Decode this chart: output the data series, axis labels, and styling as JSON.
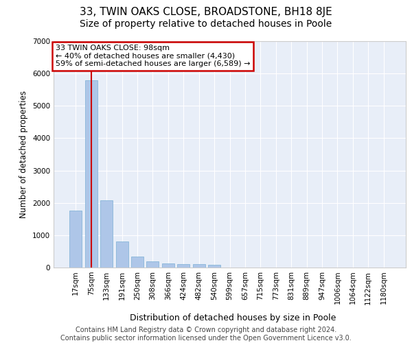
{
  "title_line1": "33, TWIN OAKS CLOSE, BROADSTONE, BH18 8JE",
  "title_line2": "Size of property relative to detached houses in Poole",
  "xlabel": "Distribution of detached houses by size in Poole",
  "ylabel": "Number of detached properties",
  "categories": [
    "17sqm",
    "75sqm",
    "133sqm",
    "191sqm",
    "250sqm",
    "308sqm",
    "366sqm",
    "424sqm",
    "482sqm",
    "540sqm",
    "599sqm",
    "657sqm",
    "715sqm",
    "773sqm",
    "831sqm",
    "889sqm",
    "947sqm",
    "1006sqm",
    "1064sqm",
    "1122sqm",
    "1180sqm"
  ],
  "values": [
    1770,
    5800,
    2080,
    800,
    340,
    200,
    130,
    110,
    110,
    90,
    0,
    0,
    0,
    0,
    0,
    0,
    0,
    0,
    0,
    0,
    0
  ],
  "bar_color": "#aec6e8",
  "bar_edge_color": "#7aafd4",
  "vline_color": "#cc0000",
  "vline_x": 1.0,
  "ylim": [
    0,
    7000
  ],
  "yticks": [
    0,
    1000,
    2000,
    3000,
    4000,
    5000,
    6000,
    7000
  ],
  "annotation_text": "33 TWIN OAKS CLOSE: 98sqm\n← 40% of detached houses are smaller (4,430)\n59% of semi-detached houses are larger (6,589) →",
  "annotation_box_edgecolor": "#cc0000",
  "footer_line1": "Contains HM Land Registry data © Crown copyright and database right 2024.",
  "footer_line2": "Contains public sector information licensed under the Open Government Licence v3.0.",
  "bg_color": "#e8eef8",
  "grid_color": "#ffffff",
  "title1_fontsize": 11,
  "title2_fontsize": 10,
  "ylabel_fontsize": 8.5,
  "xlabel_fontsize": 9,
  "tick_fontsize": 7.5,
  "annot_fontsize": 8,
  "footer_fontsize": 7
}
